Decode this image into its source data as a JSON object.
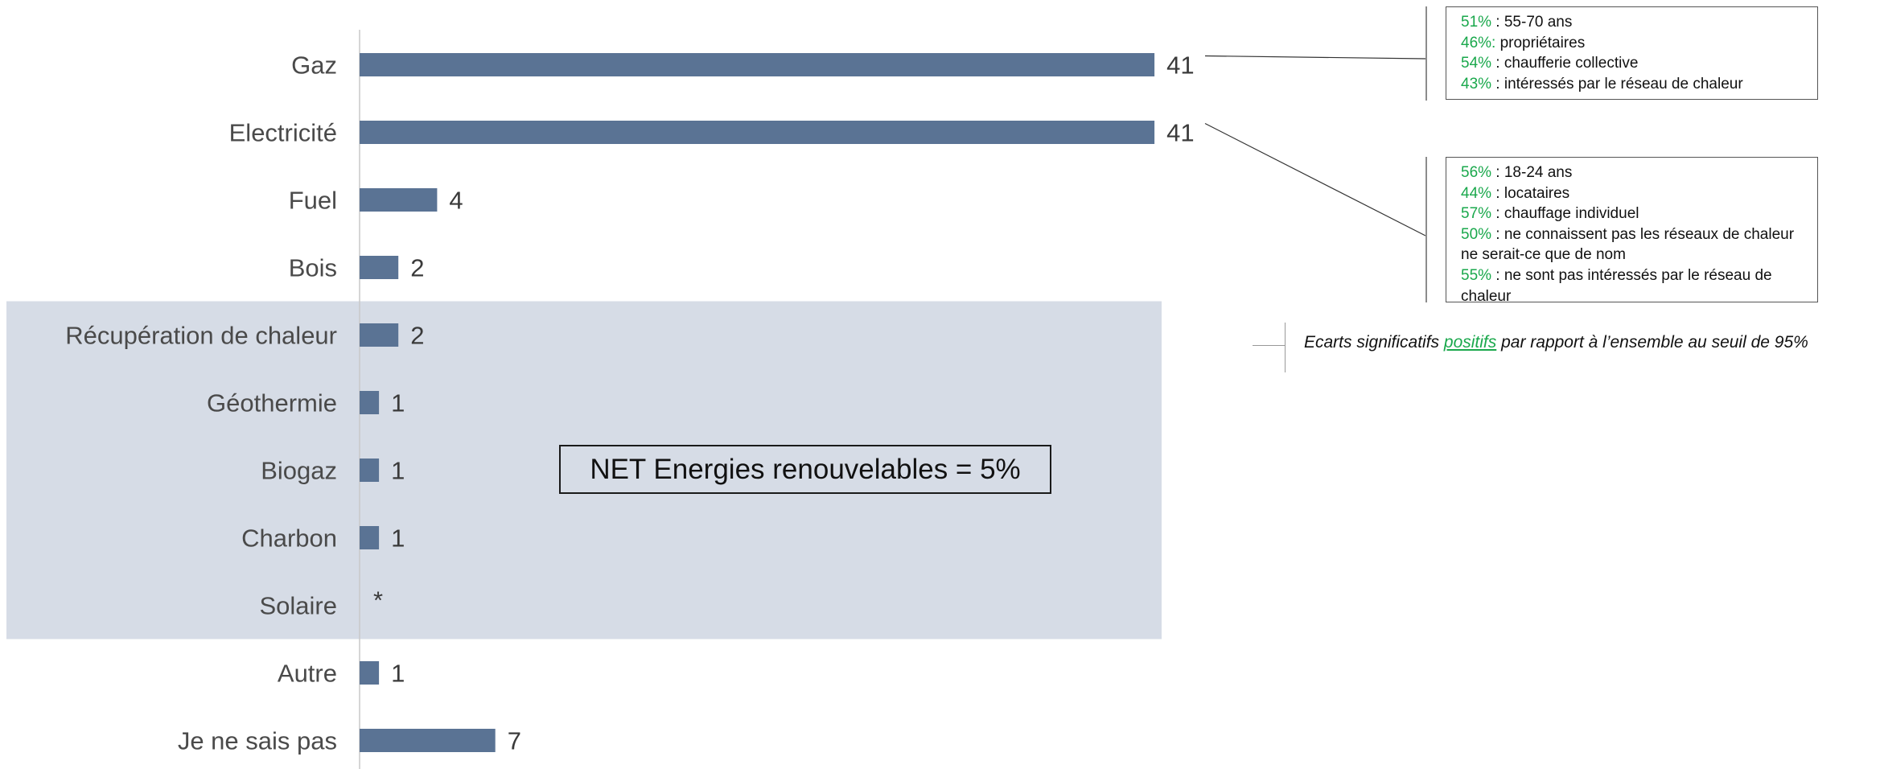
{
  "chart_data": {
    "type": "bar",
    "orientation": "horizontal",
    "categories": [
      "Gaz",
      "Electricité",
      "Fuel",
      "Bois",
      "Récupération de chaleur",
      "Géothermie",
      "Biogaz",
      "Charbon",
      "Solaire",
      "Autre",
      "Je ne sais pas"
    ],
    "values": [
      41,
      41,
      4,
      2,
      2,
      1,
      1,
      1,
      0.2,
      1,
      7
    ],
    "value_labels": [
      "41",
      "41",
      "4",
      "2",
      "2",
      "1",
      "1",
      "1",
      "*",
      "1",
      "7"
    ],
    "xlim": [
      0,
      60
    ],
    "highlighted_group": {
      "categories": [
        "Récupération de chaleur",
        "Géothermie",
        "Biogaz",
        "Charbon",
        "Solaire"
      ],
      "label": "NET Energies renouvelables = 5%"
    },
    "colors": {
      "bar": "#5a7394",
      "highlight_band": "#d6dce6",
      "positive_gap": "#1aa84c"
    }
  },
  "callouts": [
    {
      "category": "Gaz",
      "lines": [
        {
          "pct": "51%",
          "text": " : 55-70 ans"
        },
        {
          "pct": "46%:",
          "text": " propriétaires"
        },
        {
          "pct": "54%",
          "text": " : chaufferie collective"
        },
        {
          "pct": "43%",
          "text": " : intéressés par le réseau de chaleur"
        }
      ]
    },
    {
      "category": "Electricité",
      "lines": [
        {
          "pct": "56%",
          "text": " : 18-24 ans"
        },
        {
          "pct": "44%",
          "text": " : locataires"
        },
        {
          "pct": "57%",
          "text": " : chauffage individuel"
        },
        {
          "pct": "50%",
          "text": " : ne connaissent pas les réseaux de chaleur ne serait-ce que de nom"
        },
        {
          "pct": "55%",
          "text": " : ne sont pas intéressés par le réseau de chaleur"
        }
      ]
    }
  ],
  "legend": {
    "before": "Ecarts significatifs ",
    "highlight": "positifs",
    "after": " par rapport à l’ensemble au seuil de 95%"
  }
}
